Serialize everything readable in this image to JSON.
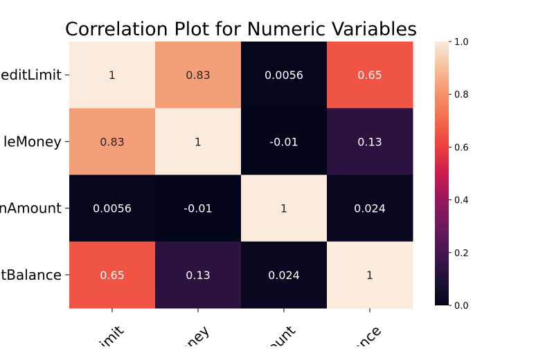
{
  "chart_data": {
    "type": "heatmap",
    "title": "Correlation Plot for Numeric Variables",
    "row_labels": [
      "editLimit",
      "leMoney",
      "nAmount",
      "tBalance"
    ],
    "col_labels": [
      "tLimit",
      "Money",
      "mount",
      "lance"
    ],
    "values": [
      [
        1,
        0.83,
        0.0056,
        0.65
      ],
      [
        0.83,
        1,
        -0.01,
        0.13
      ],
      [
        0.0056,
        -0.01,
        1,
        0.024
      ],
      [
        0.65,
        0.13,
        0.024,
        1
      ]
    ],
    "annotations": [
      [
        "1",
        "0.83",
        "0.0056",
        "0.65"
      ],
      [
        "0.83",
        "1",
        "-0.01",
        "0.13"
      ],
      [
        "0.0056",
        "-0.01",
        "1",
        "0.024"
      ],
      [
        "0.65",
        "0.13",
        "0.024",
        "1"
      ]
    ],
    "vmin": 0,
    "vmax": 1,
    "colormap": "rocket",
    "colorbar_ticks": [
      "0.0",
      "0.2",
      "0.4",
      "0.6",
      "0.8",
      "1.0"
    ],
    "colorbar_position": "right",
    "grid": false
  }
}
